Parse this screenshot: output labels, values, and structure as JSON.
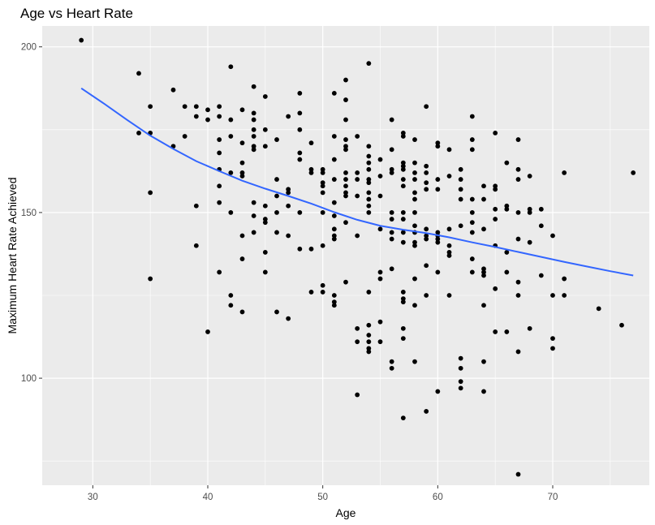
{
  "chart_data": {
    "type": "scatter",
    "title": "Age vs Heart Rate",
    "xlabel": "Age",
    "ylabel": "Maximum Heart Rate Achieved",
    "xlim": [
      25.6,
      78.4
    ],
    "ylim": [
      67.7,
      206.3
    ],
    "x_ticks": [
      30,
      40,
      50,
      60,
      70
    ],
    "y_ticks": [
      100,
      150,
      200
    ],
    "grid": true,
    "legend": "none",
    "colors": {
      "panel": "#EBEBEB",
      "grid": "#FFFFFF",
      "point": "#000000",
      "smooth": "#3366FF"
    },
    "points": [
      [
        29,
        202
      ],
      [
        34,
        192
      ],
      [
        34,
        174
      ],
      [
        35,
        182
      ],
      [
        35,
        174
      ],
      [
        35,
        156
      ],
      [
        35,
        130
      ],
      [
        37,
        187
      ],
      [
        37,
        170
      ],
      [
        38,
        182
      ],
      [
        38,
        173
      ],
      [
        39,
        182
      ],
      [
        39,
        179
      ],
      [
        39,
        152
      ],
      [
        39,
        140
      ],
      [
        40,
        181
      ],
      [
        40,
        178
      ],
      [
        40,
        114
      ],
      [
        41,
        182
      ],
      [
        41,
        179
      ],
      [
        41,
        172
      ],
      [
        41,
        168
      ],
      [
        41,
        163
      ],
      [
        41,
        158
      ],
      [
        41,
        153
      ],
      [
        41,
        132
      ],
      [
        42,
        194
      ],
      [
        42,
        178
      ],
      [
        42,
        173
      ],
      [
        42,
        162
      ],
      [
        42,
        150
      ],
      [
        42,
        125
      ],
      [
        42,
        122
      ],
      [
        43,
        181
      ],
      [
        43,
        171
      ],
      [
        43,
        165
      ],
      [
        43,
        162
      ],
      [
        43,
        161
      ],
      [
        43,
        143
      ],
      [
        43,
        136
      ],
      [
        43,
        120
      ],
      [
        44,
        188
      ],
      [
        44,
        180
      ],
      [
        44,
        178
      ],
      [
        44,
        175
      ],
      [
        44,
        173
      ],
      [
        44,
        170
      ],
      [
        44,
        169
      ],
      [
        44,
        153
      ],
      [
        44,
        149
      ],
      [
        44,
        144
      ],
      [
        45,
        185
      ],
      [
        45,
        175
      ],
      [
        45,
        170
      ],
      [
        45,
        152
      ],
      [
        45,
        148
      ],
      [
        45,
        147
      ],
      [
        45,
        138
      ],
      [
        45,
        132
      ],
      [
        46,
        172
      ],
      [
        46,
        160
      ],
      [
        46,
        155
      ],
      [
        46,
        150
      ],
      [
        46,
        144
      ],
      [
        46,
        120
      ],
      [
        47,
        179
      ],
      [
        47,
        157
      ],
      [
        47,
        156
      ],
      [
        47,
        152
      ],
      [
        47,
        143
      ],
      [
        47,
        118
      ],
      [
        48,
        186
      ],
      [
        48,
        180
      ],
      [
        48,
        175
      ],
      [
        48,
        168
      ],
      [
        48,
        166
      ],
      [
        48,
        150
      ],
      [
        48,
        139
      ],
      [
        49,
        171
      ],
      [
        49,
        163
      ],
      [
        49,
        162
      ],
      [
        49,
        139
      ],
      [
        49,
        126
      ],
      [
        50,
        163
      ],
      [
        50,
        162
      ],
      [
        50,
        159
      ],
      [
        50,
        158
      ],
      [
        50,
        156
      ],
      [
        50,
        150
      ],
      [
        50,
        140
      ],
      [
        50,
        128
      ],
      [
        50,
        126
      ],
      [
        51,
        186
      ],
      [
        51,
        173
      ],
      [
        51,
        166
      ],
      [
        51,
        160
      ],
      [
        51,
        153
      ],
      [
        51,
        149
      ],
      [
        51,
        145
      ],
      [
        51,
        143
      ],
      [
        51,
        142
      ],
      [
        51,
        125
      ],
      [
        51,
        123
      ],
      [
        51,
        122
      ],
      [
        52,
        190
      ],
      [
        52,
        184
      ],
      [
        52,
        178
      ],
      [
        52,
        172
      ],
      [
        52,
        170
      ],
      [
        52,
        169
      ],
      [
        52,
        162
      ],
      [
        52,
        160
      ],
      [
        52,
        158
      ],
      [
        52,
        156
      ],
      [
        52,
        155
      ],
      [
        52,
        147
      ],
      [
        52,
        129
      ],
      [
        53,
        173
      ],
      [
        53,
        162
      ],
      [
        53,
        160
      ],
      [
        53,
        155
      ],
      [
        53,
        143
      ],
      [
        53,
        115
      ],
      [
        53,
        111
      ],
      [
        53,
        95
      ],
      [
        54,
        195
      ],
      [
        54,
        170
      ],
      [
        54,
        167
      ],
      [
        54,
        165
      ],
      [
        54,
        163
      ],
      [
        54,
        160
      ],
      [
        54,
        159
      ],
      [
        54,
        156
      ],
      [
        54,
        154
      ],
      [
        54,
        152
      ],
      [
        54,
        150
      ],
      [
        54,
        126
      ],
      [
        54,
        116
      ],
      [
        54,
        113
      ],
      [
        54,
        111
      ],
      [
        54,
        109
      ],
      [
        54,
        108
      ],
      [
        55,
        166
      ],
      [
        55,
        161
      ],
      [
        55,
        155
      ],
      [
        55,
        145
      ],
      [
        55,
        132
      ],
      [
        55,
        130
      ],
      [
        55,
        117
      ],
      [
        55,
        111
      ],
      [
        56,
        178
      ],
      [
        56,
        169
      ],
      [
        56,
        163
      ],
      [
        56,
        162
      ],
      [
        56,
        150
      ],
      [
        56,
        148
      ],
      [
        56,
        144
      ],
      [
        56,
        142
      ],
      [
        56,
        133
      ],
      [
        56,
        105
      ],
      [
        56,
        103
      ],
      [
        57,
        174
      ],
      [
        57,
        173
      ],
      [
        57,
        165
      ],
      [
        57,
        164
      ],
      [
        57,
        163
      ],
      [
        57,
        160
      ],
      [
        57,
        158
      ],
      [
        57,
        150
      ],
      [
        57,
        148
      ],
      [
        57,
        144
      ],
      [
        57,
        141
      ],
      [
        57,
        126
      ],
      [
        57,
        124
      ],
      [
        57,
        123
      ],
      [
        57,
        115
      ],
      [
        57,
        112
      ],
      [
        57,
        88
      ],
      [
        58,
        172
      ],
      [
        58,
        165
      ],
      [
        58,
        162
      ],
      [
        58,
        160
      ],
      [
        58,
        156
      ],
      [
        58,
        154
      ],
      [
        58,
        150
      ],
      [
        58,
        146
      ],
      [
        58,
        144
      ],
      [
        58,
        141
      ],
      [
        58,
        140
      ],
      [
        58,
        130
      ],
      [
        58,
        122
      ],
      [
        58,
        105
      ],
      [
        59,
        182
      ],
      [
        59,
        164
      ],
      [
        59,
        162
      ],
      [
        59,
        159
      ],
      [
        59,
        157
      ],
      [
        59,
        145
      ],
      [
        59,
        143
      ],
      [
        59,
        142
      ],
      [
        59,
        134
      ],
      [
        59,
        125
      ],
      [
        59,
        90
      ],
      [
        60,
        171
      ],
      [
        60,
        170
      ],
      [
        60,
        160
      ],
      [
        60,
        157
      ],
      [
        60,
        144
      ],
      [
        60,
        143
      ],
      [
        60,
        142
      ],
      [
        60,
        141
      ],
      [
        60,
        132
      ],
      [
        60,
        96
      ],
      [
        61,
        169
      ],
      [
        61,
        161
      ],
      [
        61,
        145
      ],
      [
        61,
        140
      ],
      [
        61,
        138
      ],
      [
        61,
        137
      ],
      [
        61,
        125
      ],
      [
        62,
        163
      ],
      [
        62,
        160
      ],
      [
        62,
        157
      ],
      [
        62,
        154
      ],
      [
        62,
        146
      ],
      [
        62,
        106
      ],
      [
        62,
        103
      ],
      [
        62,
        99
      ],
      [
        62,
        97
      ],
      [
        63,
        179
      ],
      [
        63,
        172
      ],
      [
        63,
        169
      ],
      [
        63,
        154
      ],
      [
        63,
        150
      ],
      [
        63,
        147
      ],
      [
        63,
        144
      ],
      [
        63,
        136
      ],
      [
        63,
        132
      ],
      [
        64,
        158
      ],
      [
        64,
        154
      ],
      [
        64,
        145
      ],
      [
        64,
        133
      ],
      [
        64,
        132
      ],
      [
        64,
        131
      ],
      [
        64,
        122
      ],
      [
        64,
        105
      ],
      [
        64,
        96
      ],
      [
        65,
        174
      ],
      [
        65,
        158
      ],
      [
        65,
        157
      ],
      [
        65,
        151
      ],
      [
        65,
        148
      ],
      [
        65,
        140
      ],
      [
        65,
        127
      ],
      [
        65,
        114
      ],
      [
        66,
        165
      ],
      [
        66,
        152
      ],
      [
        66,
        151
      ],
      [
        66,
        138
      ],
      [
        66,
        132
      ],
      [
        66,
        114
      ],
      [
        67,
        172
      ],
      [
        67,
        163
      ],
      [
        67,
        160
      ],
      [
        67,
        150
      ],
      [
        67,
        142
      ],
      [
        67,
        129
      ],
      [
        67,
        125
      ],
      [
        67,
        108
      ],
      [
        67,
        71
      ],
      [
        68,
        161
      ],
      [
        68,
        151
      ],
      [
        68,
        150
      ],
      [
        68,
        141
      ],
      [
        68,
        115
      ],
      [
        69,
        151
      ],
      [
        69,
        146
      ],
      [
        69,
        131
      ],
      [
        70,
        143
      ],
      [
        70,
        125
      ],
      [
        70,
        112
      ],
      [
        70,
        109
      ],
      [
        71,
        162
      ],
      [
        71,
        130
      ],
      [
        71,
        125
      ],
      [
        74,
        121
      ],
      [
        76,
        116
      ],
      [
        77,
        162
      ]
    ],
    "smooth": [
      [
        29,
        187.5
      ],
      [
        31,
        182.8
      ],
      [
        33,
        177.9
      ],
      [
        35,
        173.2
      ],
      [
        37,
        169.2
      ],
      [
        39,
        165.5
      ],
      [
        41,
        162.5
      ],
      [
        43,
        159.6
      ],
      [
        45,
        157.2
      ],
      [
        47,
        155.0
      ],
      [
        49,
        152.7
      ],
      [
        51,
        150.1
      ],
      [
        53,
        147.8
      ],
      [
        55,
        146.0
      ],
      [
        57,
        144.8
      ],
      [
        59,
        143.8
      ],
      [
        61,
        142.5
      ],
      [
        63,
        141.0
      ],
      [
        65,
        139.6
      ],
      [
        67,
        138.1
      ],
      [
        69,
        136.6
      ],
      [
        71,
        135.1
      ],
      [
        73,
        133.7
      ],
      [
        75,
        132.3
      ],
      [
        77,
        131.0
      ]
    ]
  }
}
